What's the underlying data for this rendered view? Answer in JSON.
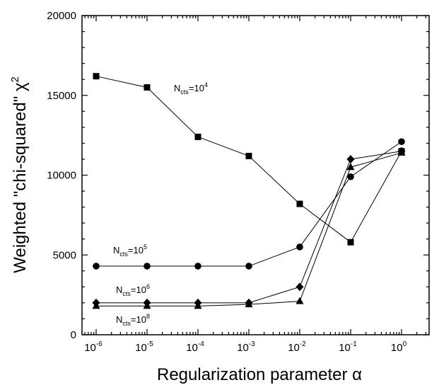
{
  "chart_data": {
    "type": "line",
    "xlabel": "Regularization parameter α",
    "ylabel": "Weighted \"chi-squared\" χ",
    "ylabel_sup": "2",
    "x_scale": "log",
    "x": [
      1e-06,
      1e-05,
      0.0001,
      0.001,
      0.01,
      0.1,
      1
    ],
    "x_tick_labels": [
      {
        "base": "10",
        "exp": "-6"
      },
      {
        "base": "10",
        "exp": "-5"
      },
      {
        "base": "10",
        "exp": "-4"
      },
      {
        "base": "10",
        "exp": "-3"
      },
      {
        "base": "10",
        "exp": "-2"
      },
      {
        "base": "10",
        "exp": "-1"
      },
      {
        "base": "10",
        "exp": "0"
      }
    ],
    "ylim": [
      0,
      20000
    ],
    "y_ticks": [
      0,
      5000,
      10000,
      15000,
      20000
    ],
    "y_tick_labels": [
      "0",
      "5000",
      "10000",
      "15000",
      "20000"
    ],
    "grid": false,
    "series": [
      {
        "marker": "square",
        "values": [
          16200,
          15500,
          12400,
          11200,
          8200,
          5800,
          11500
        ],
        "label": {
          "main": "N",
          "sub": "cts",
          "eq": "=10",
          "sup": "4"
        }
      },
      {
        "marker": "circle",
        "values": [
          4300,
          4300,
          4300,
          4300,
          5500,
          9900,
          12100
        ],
        "label": {
          "main": "N",
          "sub": "cts",
          "eq": "=10",
          "sup": "5"
        }
      },
      {
        "marker": "diamond",
        "values": [
          2000,
          2000,
          2000,
          2000,
          3000,
          11000,
          11500
        ],
        "label": {
          "main": "N",
          "sub": "cts",
          "eq": "=10",
          "sup": "6"
        }
      },
      {
        "marker": "triangle",
        "values": [
          1800,
          1800,
          1800,
          1900,
          2100,
          10500,
          11400
        ],
        "label": {
          "main": "N",
          "sub": "cts",
          "eq": "=10",
          "sup": "8"
        }
      }
    ]
  }
}
